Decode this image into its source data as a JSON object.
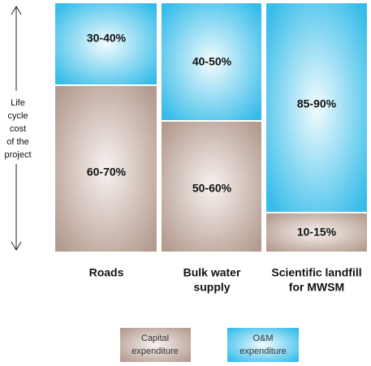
{
  "axis_label": [
    "Life",
    "cycle",
    "cost",
    "of the",
    "project"
  ],
  "columns": [
    {
      "label": [
        "Roads"
      ],
      "om": "30-40%",
      "capital": "60-70%"
    },
    {
      "label": [
        "Bulk water",
        "supply"
      ],
      "om": "40-50%",
      "capital": "50-60%"
    },
    {
      "label": [
        "Scientific landfill",
        "for MWSM"
      ],
      "om": "85-90%",
      "capital": "10-15%"
    }
  ],
  "legend": {
    "capital": [
      "Capital",
      "expenditure"
    ],
    "om": [
      "O&M",
      "expenditure"
    ]
  }
}
